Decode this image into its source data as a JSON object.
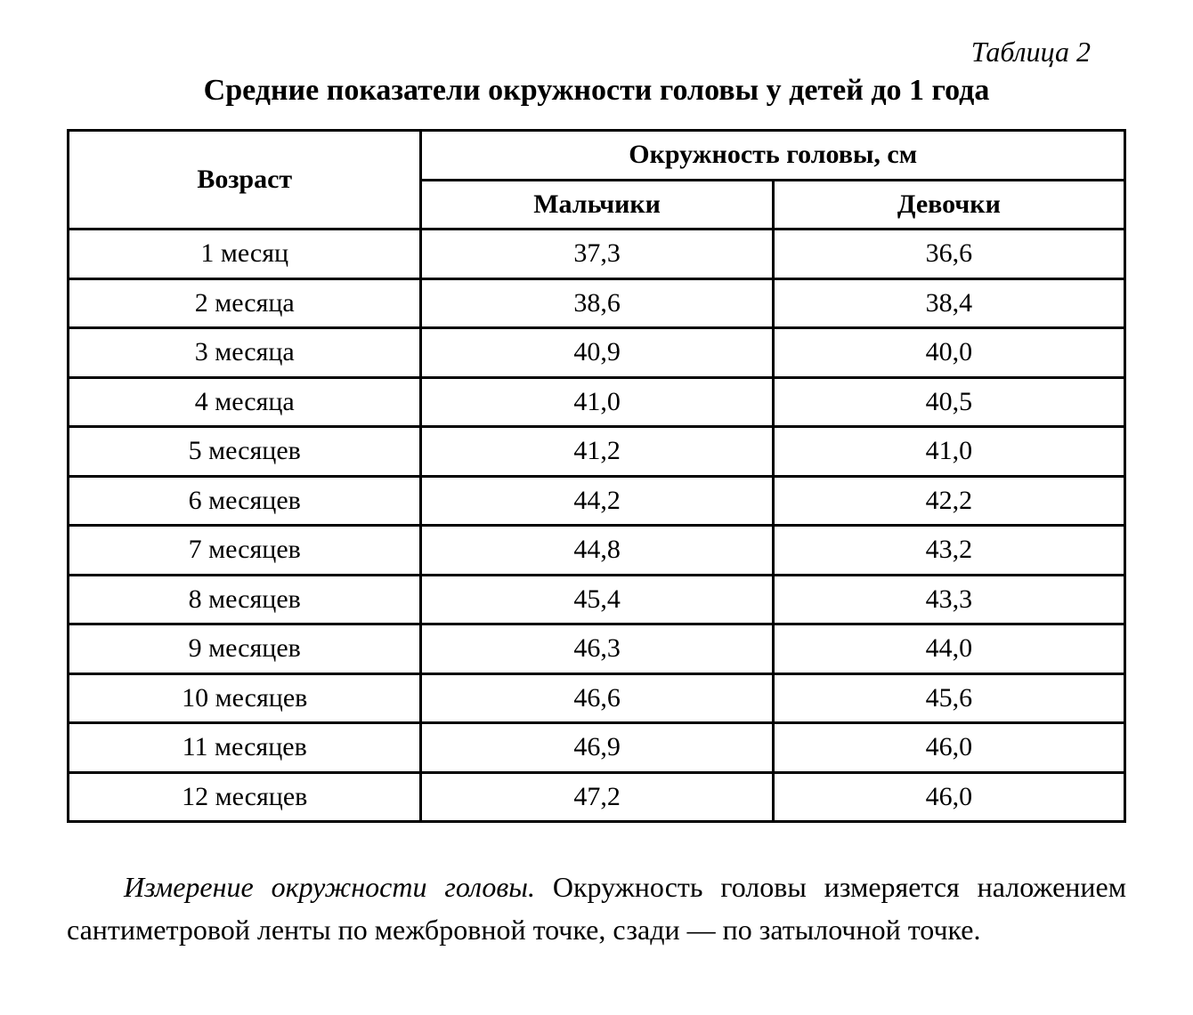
{
  "caption_number": "Таблица 2",
  "title": "Средние показатели окружности головы у детей до 1 года",
  "table": {
    "type": "table",
    "border_color": "#000000",
    "background_color": "#ffffff",
    "font_family": "Times New Roman",
    "header_fontsize_pt": 22,
    "cell_fontsize_pt": 22,
    "column_widths_pct": [
      33.4,
      33.3,
      33.3
    ],
    "header": {
      "age": "Возраст",
      "group": "Окружность головы, см",
      "boys": "Мальчики",
      "girls": "Девочки"
    },
    "rows": [
      {
        "age": "1 месяц",
        "boys": "37,3",
        "girls": "36,6"
      },
      {
        "age": "2 месяца",
        "boys": "38,6",
        "girls": "38,4"
      },
      {
        "age": "3 месяца",
        "boys": "40,9",
        "girls": "40,0"
      },
      {
        "age": "4 месяца",
        "boys": "41,0",
        "girls": "40,5"
      },
      {
        "age": "5 месяцев",
        "boys": "41,2",
        "girls": "41,0"
      },
      {
        "age": "6 месяцев",
        "boys": "44,2",
        "girls": "42,2"
      },
      {
        "age": "7 месяцев",
        "boys": "44,8",
        "girls": "43,2"
      },
      {
        "age": "8 месяцев",
        "boys": "45,4",
        "girls": "43,3"
      },
      {
        "age": "9 месяцев",
        "boys": "46,3",
        "girls": "44,0"
      },
      {
        "age": "10 месяцев",
        "boys": "46,6",
        "girls": "45,6"
      },
      {
        "age": "11 месяцев",
        "boys": "46,9",
        "girls": "46,0"
      },
      {
        "age": "12 месяцев",
        "boys": "47,2",
        "girls": "46,0"
      }
    ]
  },
  "paragraph": {
    "lead_italic": "Измерение окружности головы.",
    "rest": " Окружность головы изме­ряется наложением сантиметровой ленты по межбровной точ­ке, сзади — по затылочной точке."
  }
}
